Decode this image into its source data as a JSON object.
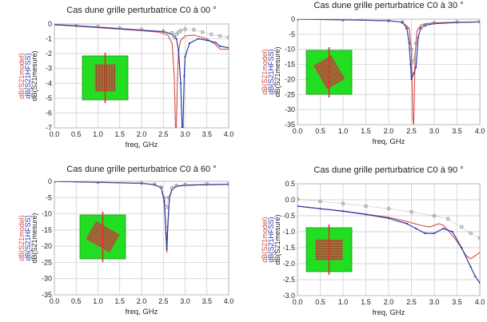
{
  "colors": {
    "model": "#d64a4a",
    "hfss": "#2a3aa8",
    "mesure": "#8a8a8a",
    "grid": "#c9c9c9",
    "inset_bg": "#22dd22",
    "inset_stripe": "#8b5a2b",
    "inset_line": "#e03030"
  },
  "chart_data": [
    {
      "type": "line",
      "title": "Cas dune grille perturbatrice C0 à 00 °",
      "xlabel": "freq, GHz",
      "ylabel_lines": [
        "dB(S21model)",
        "dB(S21HFSS)",
        "dB(S21mesure)"
      ],
      "xlim": [
        0,
        4
      ],
      "ylim": [
        -7,
        0
      ],
      "xticks": [
        "0.0",
        "0.5",
        "1.0",
        "1.5",
        "2.0",
        "2.5",
        "3.0",
        "3.5",
        "4.0"
      ],
      "yticks": [
        "0",
        "-1",
        "-2",
        "-3",
        "-4",
        "-5",
        "-6",
        "-7"
      ],
      "inset_rotation": 0,
      "grid": true,
      "series": [
        {
          "key": "model",
          "x": [
            0,
            0.5,
            1,
            1.5,
            2,
            2.4,
            2.6,
            2.7,
            2.75,
            2.78,
            2.8,
            2.82,
            2.85,
            2.9,
            3.0,
            3.2,
            3.5,
            3.7,
            3.8,
            4.0
          ],
          "y": [
            -0.05,
            -0.15,
            -0.25,
            -0.35,
            -0.45,
            -0.55,
            -0.75,
            -1.3,
            -3.5,
            -7,
            -7,
            -4,
            -1.8,
            -1.1,
            -0.8,
            -0.75,
            -1.0,
            -1.4,
            -1.7,
            -1.7
          ]
        },
        {
          "key": "hfss",
          "x": [
            0,
            0.5,
            1,
            1.5,
            2,
            2.5,
            2.7,
            2.8,
            2.85,
            2.9,
            2.93,
            2.95,
            2.98,
            3.0,
            3.1,
            3.3,
            3.5,
            3.7,
            3.8,
            4.0
          ],
          "y": [
            -0.05,
            -0.12,
            -0.22,
            -0.32,
            -0.42,
            -0.52,
            -0.7,
            -1.0,
            -1.8,
            -4,
            -7,
            -7,
            -3.5,
            -2.2,
            -1.3,
            -1.0,
            -1.1,
            -1.25,
            -1.5,
            -1.6
          ]
        },
        {
          "key": "mesure",
          "x": [
            0,
            0.5,
            1,
            1.5,
            2,
            2.5,
            2.7,
            2.75,
            2.8,
            2.85,
            2.9,
            3.0,
            3.2,
            3.4,
            3.6,
            3.8,
            4.0
          ],
          "y": [
            0.0,
            -0.1,
            -0.18,
            -0.28,
            -0.38,
            -0.48,
            -0.6,
            -0.9,
            -0.7,
            -0.55,
            -0.45,
            -0.35,
            -0.4,
            -0.55,
            -0.7,
            -0.8,
            -0.9
          ]
        }
      ]
    },
    {
      "type": "line",
      "title": "Cas dune grille perturbatrice C0 à 30 °",
      "xlabel": "freq, GHz",
      "ylabel_lines": [
        "dB(S21model)",
        "dB(S21HFSS)",
        "dB(S21mesure)"
      ],
      "xlim": [
        0,
        4
      ],
      "ylim": [
        -35,
        0
      ],
      "xticks": [
        "0.0",
        "0.5",
        "1.0",
        "1.5",
        "2.0",
        "2.5",
        "3.0",
        "3.5",
        "4.0"
      ],
      "yticks": [
        "0",
        "-5",
        "-10",
        "-15",
        "-20",
        "-25",
        "-30",
        "-35"
      ],
      "inset_rotation": -30,
      "grid": true,
      "series": [
        {
          "key": "model",
          "x": [
            0,
            1,
            2,
            2.3,
            2.45,
            2.5,
            2.53,
            2.55,
            2.58,
            2.62,
            2.7,
            2.8,
            3.0,
            3.5,
            4.0
          ],
          "y": [
            0,
            -0.2,
            -0.5,
            -1,
            -3,
            -10,
            -33,
            -35,
            -12,
            -4,
            -2,
            -1.5,
            -1.2,
            -1.0,
            -0.9
          ]
        },
        {
          "key": "hfss",
          "x": [
            0,
            1,
            2,
            2.3,
            2.4,
            2.45,
            2.48,
            2.5,
            2.55,
            2.6,
            2.65,
            2.7,
            2.8,
            3.0,
            3.5,
            4.0
          ],
          "y": [
            0,
            -0.2,
            -0.5,
            -1,
            -3,
            -8,
            -15,
            -20,
            -18,
            -16,
            -6,
            -3,
            -2,
            -1.5,
            -1.1,
            -0.9
          ]
        },
        {
          "key": "mesure",
          "x": [
            0,
            1,
            2,
            2.3,
            2.4,
            2.5,
            2.55,
            2.6,
            2.7,
            2.8,
            3.0,
            3.5,
            4.0
          ],
          "y": [
            0,
            -0.2,
            -0.5,
            -1,
            -3,
            -10,
            -14,
            -8,
            -3,
            -2,
            -1.2,
            -0.9,
            -0.8
          ]
        }
      ]
    },
    {
      "type": "line",
      "title": "Cas dune grille perturbatrice C0 à 60 °",
      "xlabel": "freq, GHz",
      "ylabel_lines": [
        "dB(S21model)",
        "dB(S21HFSS)",
        "dB(S21mesure)"
      ],
      "xlim": [
        0,
        4
      ],
      "ylim": [
        -35,
        0
      ],
      "xticks": [
        "0.0",
        "0.5",
        "1.0",
        "1.5",
        "2.0",
        "2.5",
        "3.0",
        "3.5",
        "4.0"
      ],
      "yticks": [
        "0",
        "-5",
        "-10",
        "-15",
        "-20",
        "-25",
        "-30",
        "-35"
      ],
      "inset_rotation": -60,
      "grid": true,
      "series": [
        {
          "key": "model",
          "x": [
            0,
            1,
            2,
            2.3,
            2.45,
            2.52,
            2.56,
            2.58,
            2.6,
            2.64,
            2.7,
            2.8,
            3.0,
            3.5,
            4.0
          ],
          "y": [
            0,
            -0.3,
            -0.6,
            -1,
            -2,
            -5,
            -15,
            -22,
            -15,
            -5,
            -2.5,
            -1.5,
            -1.2,
            -1.0,
            -0.9
          ]
        },
        {
          "key": "hfss",
          "x": [
            0,
            1,
            2,
            2.3,
            2.45,
            2.52,
            2.56,
            2.58,
            2.6,
            2.64,
            2.7,
            2.8,
            3.0,
            3.5,
            4.0
          ],
          "y": [
            0,
            -0.3,
            -0.6,
            -1,
            -2,
            -6,
            -16,
            -21,
            -14,
            -5,
            -2.5,
            -1.5,
            -1.2,
            -1.0,
            -0.9
          ]
        },
        {
          "key": "mesure",
          "x": [
            0,
            1,
            2,
            2.3,
            2.45,
            2.52,
            2.57,
            2.62,
            2.7,
            2.8,
            3.0,
            3.5,
            4.0
          ],
          "y": [
            0,
            -0.2,
            -0.5,
            -0.9,
            -1.8,
            -5,
            -8,
            -5,
            -2,
            -1.3,
            -1.0,
            -0.8,
            -0.8
          ]
        }
      ]
    },
    {
      "type": "line",
      "title": "Cas dune grille perturbatrice C0 à 90 °",
      "xlabel": "freq, GHz",
      "ylabel_lines": [
        "dB(S21model)",
        "dB(S21HFSS)",
        "dB(S21mesure)"
      ],
      "xlim": [
        0,
        4
      ],
      "ylim": [
        -3,
        0.5
      ],
      "xticks": [
        "0.0",
        "0.5",
        "1.0",
        "1.5",
        "2.0",
        "2.5",
        "3.0",
        "3.5",
        "4.0"
      ],
      "yticks": [
        "0.5",
        "0.0",
        "-0.5",
        "-1.0",
        "-1.5",
        "-2.0",
        "-2.5",
        "-3.0"
      ],
      "inset_rotation": 90,
      "grid": true,
      "series": [
        {
          "key": "model",
          "x": [
            0,
            0.5,
            1,
            1.5,
            2,
            2.4,
            2.7,
            2.9,
            3.1,
            3.2,
            3.3,
            3.5,
            3.7,
            3.8,
            3.9,
            4.0
          ],
          "y": [
            -0.2,
            -0.28,
            -0.35,
            -0.45,
            -0.55,
            -0.68,
            -0.8,
            -0.85,
            -0.75,
            -0.8,
            -0.95,
            -1.3,
            -1.75,
            -1.85,
            -1.75,
            -1.65
          ]
        },
        {
          "key": "hfss",
          "x": [
            0,
            0.5,
            1,
            1.5,
            2,
            2.4,
            2.6,
            2.8,
            3.0,
            3.2,
            3.4,
            3.6,
            3.8,
            3.9,
            4.0
          ],
          "y": [
            -0.2,
            -0.28,
            -0.36,
            -0.46,
            -0.58,
            -0.75,
            -0.9,
            -1.05,
            -1.05,
            -0.9,
            -1.0,
            -1.5,
            -2.1,
            -2.4,
            -2.6
          ]
        },
        {
          "key": "mesure",
          "x": [
            0,
            0.5,
            1,
            1.5,
            2,
            2.5,
            3.0,
            3.3,
            3.6,
            3.8,
            4.0
          ],
          "y": [
            0.02,
            -0.05,
            -0.12,
            -0.2,
            -0.28,
            -0.38,
            -0.5,
            -0.6,
            -0.85,
            -1.05,
            -1.2
          ]
        }
      ]
    }
  ]
}
